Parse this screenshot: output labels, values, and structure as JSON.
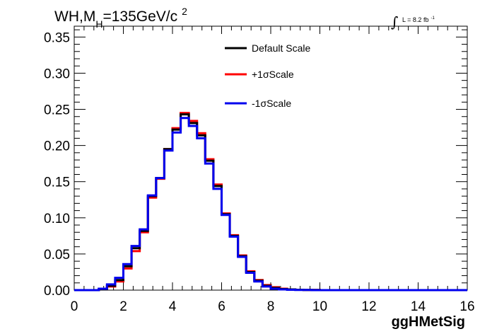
{
  "title": {
    "prefix": "WH,M",
    "subscript": "H",
    "mass": "=135GeV/c",
    "superscript": "2"
  },
  "luminosity": {
    "symbol": "∫",
    "text": "L = 8.2 fb",
    "superscript": "-1"
  },
  "chart_data": {
    "type": "line",
    "style": "step-histogram",
    "xlabel": "ggHMetSig",
    "ylabel": "",
    "xlim": [
      0,
      16
    ],
    "ylim": [
      0,
      0.365
    ],
    "xticks": [
      0,
      2,
      4,
      6,
      8,
      10,
      12,
      14,
      16
    ],
    "yticks": [
      0.0,
      0.05,
      0.1,
      0.15,
      0.2,
      0.25,
      0.3,
      0.35
    ],
    "xtick_labels": [
      "0",
      "2",
      "4",
      "6",
      "8",
      "10",
      "12",
      "14",
      "16"
    ],
    "ytick_labels": [
      "0.00",
      "0.05",
      "0.10",
      "0.15",
      "0.20",
      "0.25",
      "0.30",
      "0.35"
    ],
    "grid": false,
    "legend_position": "top-center",
    "bin_width": 0.3333,
    "series": [
      {
        "name": "Default Scale",
        "color": "#000000",
        "values": [
          0,
          0,
          0,
          0.001,
          0.006,
          0.014,
          0.033,
          0.058,
          0.082,
          0.13,
          0.155,
          0.195,
          0.222,
          0.243,
          0.231,
          0.214,
          0.179,
          0.144,
          0.105,
          0.075,
          0.047,
          0.025,
          0.013,
          0.006,
          0.003,
          0.0015,
          0.001,
          0.0005,
          0.0003,
          0.0002,
          0,
          0,
          0,
          0,
          0,
          0,
          0,
          0,
          0,
          0,
          0,
          0,
          0,
          0,
          0,
          0,
          0,
          0
        ]
      },
      {
        "name": "+1σScale",
        "color": "#ff0000",
        "values": [
          0,
          0,
          0,
          0.001,
          0.005,
          0.012,
          0.03,
          0.054,
          0.08,
          0.128,
          0.154,
          0.195,
          0.224,
          0.245,
          0.234,
          0.217,
          0.181,
          0.146,
          0.106,
          0.076,
          0.048,
          0.026,
          0.014,
          0.007,
          0.004,
          0.002,
          0.001,
          0.0005,
          0.0003,
          0.0002,
          0,
          0,
          0,
          0,
          0,
          0,
          0,
          0,
          0,
          0,
          0,
          0,
          0,
          0,
          0,
          0,
          0,
          0
        ]
      },
      {
        "name": "-1σScale",
        "color": "#0000ee",
        "values": [
          0,
          0,
          0,
          0.002,
          0.008,
          0.017,
          0.036,
          0.061,
          0.084,
          0.131,
          0.155,
          0.193,
          0.218,
          0.238,
          0.227,
          0.21,
          0.175,
          0.14,
          0.104,
          0.074,
          0.046,
          0.024,
          0.012,
          0.005,
          0.002,
          0.001,
          0.0005,
          0.0003,
          0.0002,
          0,
          0,
          0,
          0,
          0,
          0,
          0,
          0,
          0,
          0,
          0,
          0,
          0,
          0,
          0,
          0,
          0,
          0,
          0
        ]
      }
    ]
  }
}
